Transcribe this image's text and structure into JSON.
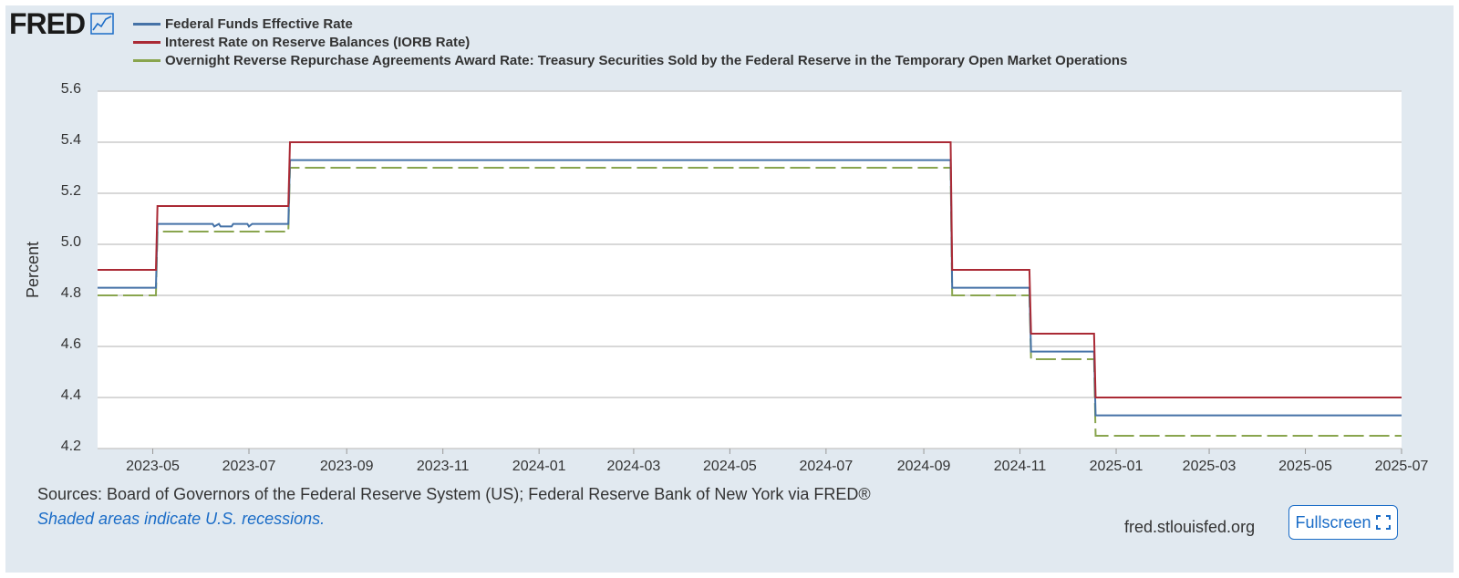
{
  "branding": {
    "logo_text": "FRED",
    "site": "fred.stlouisfed.org"
  },
  "buttons": {
    "fullscreen_label": "Fullscreen"
  },
  "footer": {
    "sources": "Sources: Board of Governors of the Federal Reserve System (US); Federal Reserve Bank of New York via FRED®",
    "recession_note": "Shaded areas indicate U.S. recessions."
  },
  "colors": {
    "effr": "#4572a7",
    "iorb": "#aa2a35",
    "onrrp": "#89a54e",
    "background": "#e1e9f0",
    "link": "#1a6cc7"
  },
  "icons": {
    "logo_chart": "line-chart-icon",
    "fullscreen": "fullscreen-icon"
  },
  "chart_data": {
    "type": "line",
    "title": "",
    "xlabel": "",
    "ylabel": "Percent",
    "xlim": [
      "2023-03-27",
      "2025-07-01"
    ],
    "ylim": [
      4.2,
      5.6
    ],
    "yticks": [
      "4.2",
      "4.4",
      "4.6",
      "4.8",
      "5.0",
      "5.2",
      "5.4",
      "5.6"
    ],
    "xticks": [
      "2023-05",
      "2023-07",
      "2023-09",
      "2023-11",
      "2024-01",
      "2024-03",
      "2024-05",
      "2024-07",
      "2024-09",
      "2024-11",
      "2025-01",
      "2025-03",
      "2025-05",
      "2025-07"
    ],
    "grid": true,
    "legend_position": "top-left",
    "series": [
      {
        "name": "Federal Funds Effective Rate",
        "color": "#4572a7",
        "dash": "solid",
        "points": [
          [
            "2023-03-27",
            4.83
          ],
          [
            "2023-05-03",
            4.83
          ],
          [
            "2023-05-04",
            5.08
          ],
          [
            "2023-06-08",
            5.08
          ],
          [
            "2023-06-09",
            5.07
          ],
          [
            "2023-06-12",
            5.08
          ],
          [
            "2023-06-13",
            5.07
          ],
          [
            "2023-06-20",
            5.07
          ],
          [
            "2023-06-21",
            5.08
          ],
          [
            "2023-06-30",
            5.08
          ],
          [
            "2023-07-01",
            5.07
          ],
          [
            "2023-07-03",
            5.08
          ],
          [
            "2023-07-26",
            5.08
          ],
          [
            "2023-07-27",
            5.33
          ],
          [
            "2024-09-18",
            5.33
          ],
          [
            "2024-09-19",
            4.83
          ],
          [
            "2024-11-07",
            4.83
          ],
          [
            "2024-11-08",
            4.58
          ],
          [
            "2024-12-18",
            4.58
          ],
          [
            "2024-12-19",
            4.33
          ],
          [
            "2025-07-01",
            4.33
          ]
        ]
      },
      {
        "name": "Interest Rate on Reserve Balances (IORB Rate)",
        "color": "#aa2a35",
        "dash": "solid",
        "points": [
          [
            "2023-03-27",
            4.9
          ],
          [
            "2023-05-03",
            4.9
          ],
          [
            "2023-05-04",
            5.15
          ],
          [
            "2023-07-26",
            5.15
          ],
          [
            "2023-07-27",
            5.4
          ],
          [
            "2024-09-18",
            5.4
          ],
          [
            "2024-09-19",
            4.9
          ],
          [
            "2024-11-07",
            4.9
          ],
          [
            "2024-11-08",
            4.65
          ],
          [
            "2024-12-18",
            4.65
          ],
          [
            "2024-12-19",
            4.4
          ],
          [
            "2025-07-01",
            4.4
          ]
        ]
      },
      {
        "name": "Overnight Reverse Repurchase Agreements Award Rate: Treasury Securities Sold by the Federal Reserve in the Temporary Open Market Operations",
        "color": "#89a54e",
        "dash": "dashed",
        "points": [
          [
            "2023-03-27",
            4.8
          ],
          [
            "2023-05-03",
            4.8
          ],
          [
            "2023-05-04",
            5.05
          ],
          [
            "2023-07-26",
            5.05
          ],
          [
            "2023-07-27",
            5.3
          ],
          [
            "2024-09-18",
            5.3
          ],
          [
            "2024-09-19",
            4.8
          ],
          [
            "2024-11-07",
            4.8
          ],
          [
            "2024-11-08",
            4.55
          ],
          [
            "2024-12-18",
            4.55
          ],
          [
            "2024-12-19",
            4.25
          ],
          [
            "2025-07-01",
            4.25
          ]
        ]
      }
    ]
  }
}
